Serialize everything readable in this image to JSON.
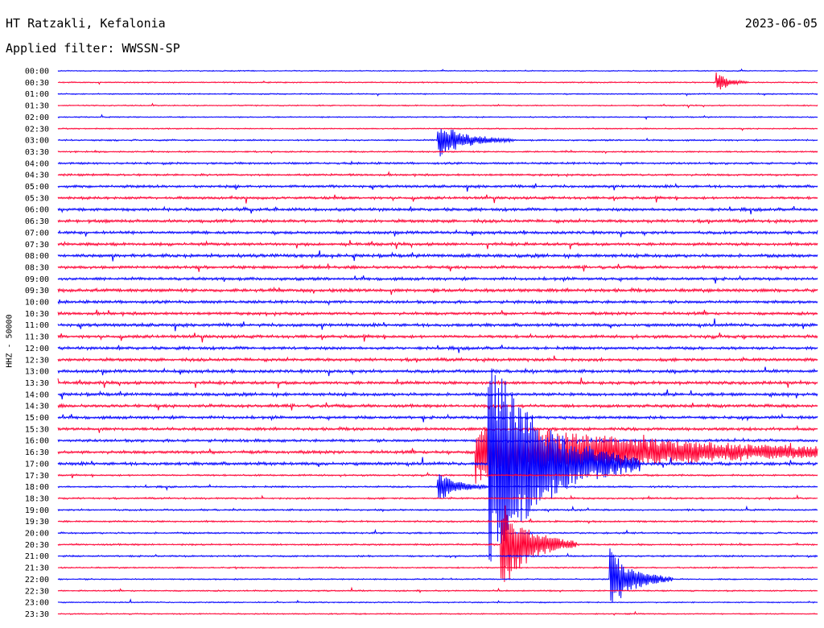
{
  "header": {
    "station": "HT Ratzakli, Kefalonia",
    "date": "2023-06-05",
    "filter": "Applied filter: WWSSN-SP",
    "channel_label": "HHZ - 50000"
  },
  "colors": {
    "even_trace": "#0000ff",
    "odd_trace": "#ff0033"
  },
  "chart_data": {
    "type": "line",
    "title": "HT Ratzakli, Kefalonia",
    "subtitle": "Applied filter: WWSSN-SP",
    "ylabel": "HHZ - 50000",
    "rows": [
      "00:00",
      "00:30",
      "01:00",
      "01:30",
      "02:00",
      "02:30",
      "03:00",
      "03:30",
      "04:00",
      "04:30",
      "05:00",
      "05:30",
      "06:00",
      "06:30",
      "07:00",
      "07:30",
      "08:00",
      "08:30",
      "09:00",
      "09:30",
      "10:00",
      "10:30",
      "11:00",
      "11:30",
      "12:00",
      "12:30",
      "13:00",
      "13:30",
      "14:00",
      "14:30",
      "15:00",
      "15:30",
      "16:00",
      "16:30",
      "17:00",
      "17:30",
      "18:00",
      "18:30",
      "19:00",
      "19:30",
      "20:00",
      "20:30",
      "21:00",
      "21:30",
      "22:00",
      "22:30",
      "23:00",
      "23:30"
    ],
    "trace_minutes": 30,
    "noise_level": [
      0.3,
      0.35,
      0.35,
      0.35,
      0.35,
      0.35,
      0.45,
      0.45,
      0.6,
      0.6,
      0.75,
      0.75,
      0.85,
      0.9,
      0.85,
      0.85,
      0.95,
      0.85,
      0.85,
      0.95,
      0.85,
      0.85,
      0.9,
      0.85,
      0.85,
      0.9,
      0.9,
      0.9,
      0.9,
      0.9,
      0.85,
      0.85,
      0.8,
      0.9,
      0.9,
      0.5,
      0.5,
      0.5,
      0.5,
      0.5,
      0.5,
      0.5,
      0.5,
      0.4,
      0.4,
      0.4,
      0.35,
      0.35
    ],
    "events": [
      {
        "row": "00:30",
        "minute": 26.0,
        "amp": 14,
        "dur": 1.2
      },
      {
        "row": "03:00",
        "minute": 15.0,
        "amp": 22,
        "dur": 3.0
      },
      {
        "row": "16:30",
        "minute": 16.5,
        "amp": 40,
        "dur": 20.0
      },
      {
        "row": "17:00",
        "minute": 17.0,
        "amp": 140,
        "dur": 6.0
      },
      {
        "row": "20:30",
        "minute": 17.5,
        "amp": 60,
        "dur": 3.0
      },
      {
        "row": "22:00",
        "minute": 21.8,
        "amp": 40,
        "dur": 2.5
      },
      {
        "row": "18:00",
        "minute": 15.0,
        "amp": 20,
        "dur": 2.0
      }
    ]
  }
}
